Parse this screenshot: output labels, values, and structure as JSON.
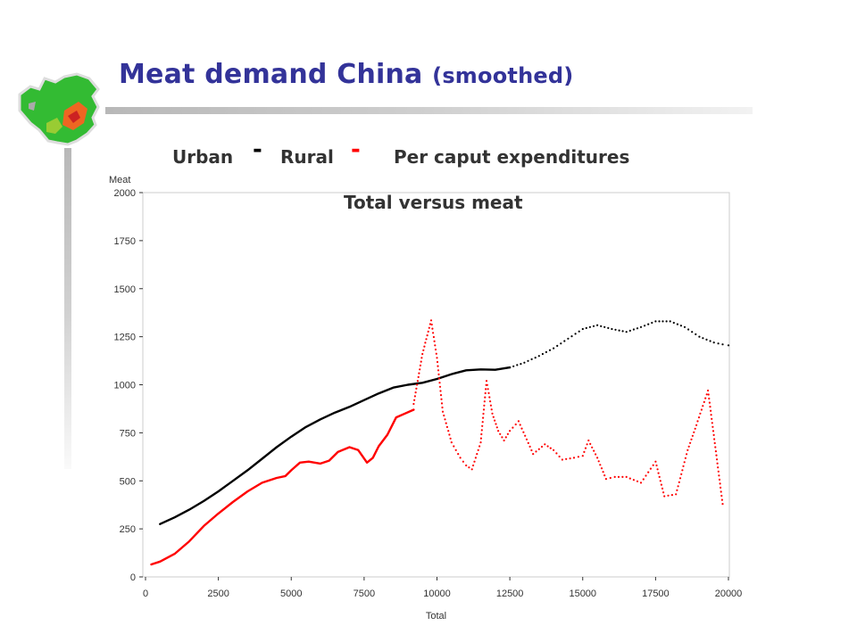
{
  "slide": {
    "title": "Meat demand China",
    "title_suffix": "(smoothed)",
    "accent_color": "#333399"
  },
  "legend": {
    "urban_label": "Urban",
    "urban_marker": "-",
    "rural_label": "Rural",
    "rural_marker": "-",
    "title": "Per caput expenditures"
  },
  "chart_data": {
    "type": "line",
    "title": "Total versus meat",
    "xlabel": "Total",
    "ylabel": "Meat",
    "xlim": [
      0,
      20000
    ],
    "ylim": [
      0,
      2000
    ],
    "xticks": [
      0,
      2500,
      5000,
      7500,
      10000,
      12500,
      15000,
      17500,
      20000
    ],
    "yticks": [
      0,
      250,
      500,
      750,
      1000,
      1250,
      1500,
      1750,
      2000
    ],
    "grid": false,
    "series": [
      {
        "name": "Urban",
        "color": "#000000",
        "style": "line",
        "x": [
          500,
          1000,
          1500,
          2000,
          2500,
          3000,
          3500,
          4000,
          4500,
          5000,
          5500,
          6000,
          6500,
          7000,
          7500,
          8000,
          8500,
          9000,
          9500,
          10000,
          10500,
          11000,
          11500,
          12000,
          12500
        ],
        "y": [
          275,
          310,
          350,
          395,
          445,
          500,
          555,
          615,
          675,
          730,
          780,
          820,
          855,
          885,
          920,
          955,
          985,
          1000,
          1010,
          1030,
          1055,
          1075,
          1080,
          1078,
          1090
        ]
      },
      {
        "name": "Urban",
        "color": "#000000",
        "style": "dotted",
        "x": [
          12500,
          13000,
          13500,
          14000,
          14500,
          15000,
          15500,
          16000,
          16500,
          17000,
          17500,
          18000,
          18500,
          19000,
          19500,
          19800,
          20000
        ],
        "y": [
          1090,
          1115,
          1150,
          1190,
          1240,
          1290,
          1310,
          1290,
          1275,
          1300,
          1330,
          1330,
          1300,
          1250,
          1220,
          1210,
          1205
        ]
      },
      {
        "name": "Rural",
        "color": "#ff0000",
        "style": "line",
        "x": [
          200,
          500,
          1000,
          1500,
          2000,
          2500,
          3000,
          3500,
          4000,
          4500,
          4800,
          5000,
          5300,
          5600,
          6000,
          6300,
          6600,
          7000,
          7300,
          7600,
          7800,
          8000,
          8300,
          8600,
          8900,
          9200
        ],
        "y": [
          65,
          80,
          120,
          185,
          265,
          330,
          390,
          445,
          490,
          515,
          525,
          555,
          595,
          600,
          590,
          605,
          650,
          675,
          660,
          595,
          620,
          680,
          740,
          830,
          850,
          870
        ]
      },
      {
        "name": "Rural",
        "color": "#ff0000",
        "style": "dotted",
        "x": [
          9200,
          9500,
          9800,
          10000,
          10200,
          10500,
          10800,
          11000,
          11200,
          11500,
          11700,
          11900,
          12100,
          12300,
          12500,
          12800,
          13300,
          13700,
          14000,
          14300,
          14700,
          15000,
          15200,
          15500,
          15800,
          16100,
          16500,
          17000,
          17500,
          17800,
          18200,
          18600,
          18900,
          19300,
          19800
        ],
        "y": [
          900,
          1160,
          1335,
          1140,
          860,
          700,
          620,
          580,
          560,
          700,
          1020,
          850,
          760,
          710,
          760,
          810,
          640,
          690,
          660,
          610,
          620,
          630,
          710,
          620,
          510,
          520,
          520,
          490,
          600,
          420,
          430,
          660,
          790,
          970,
          380
        ]
      }
    ]
  }
}
